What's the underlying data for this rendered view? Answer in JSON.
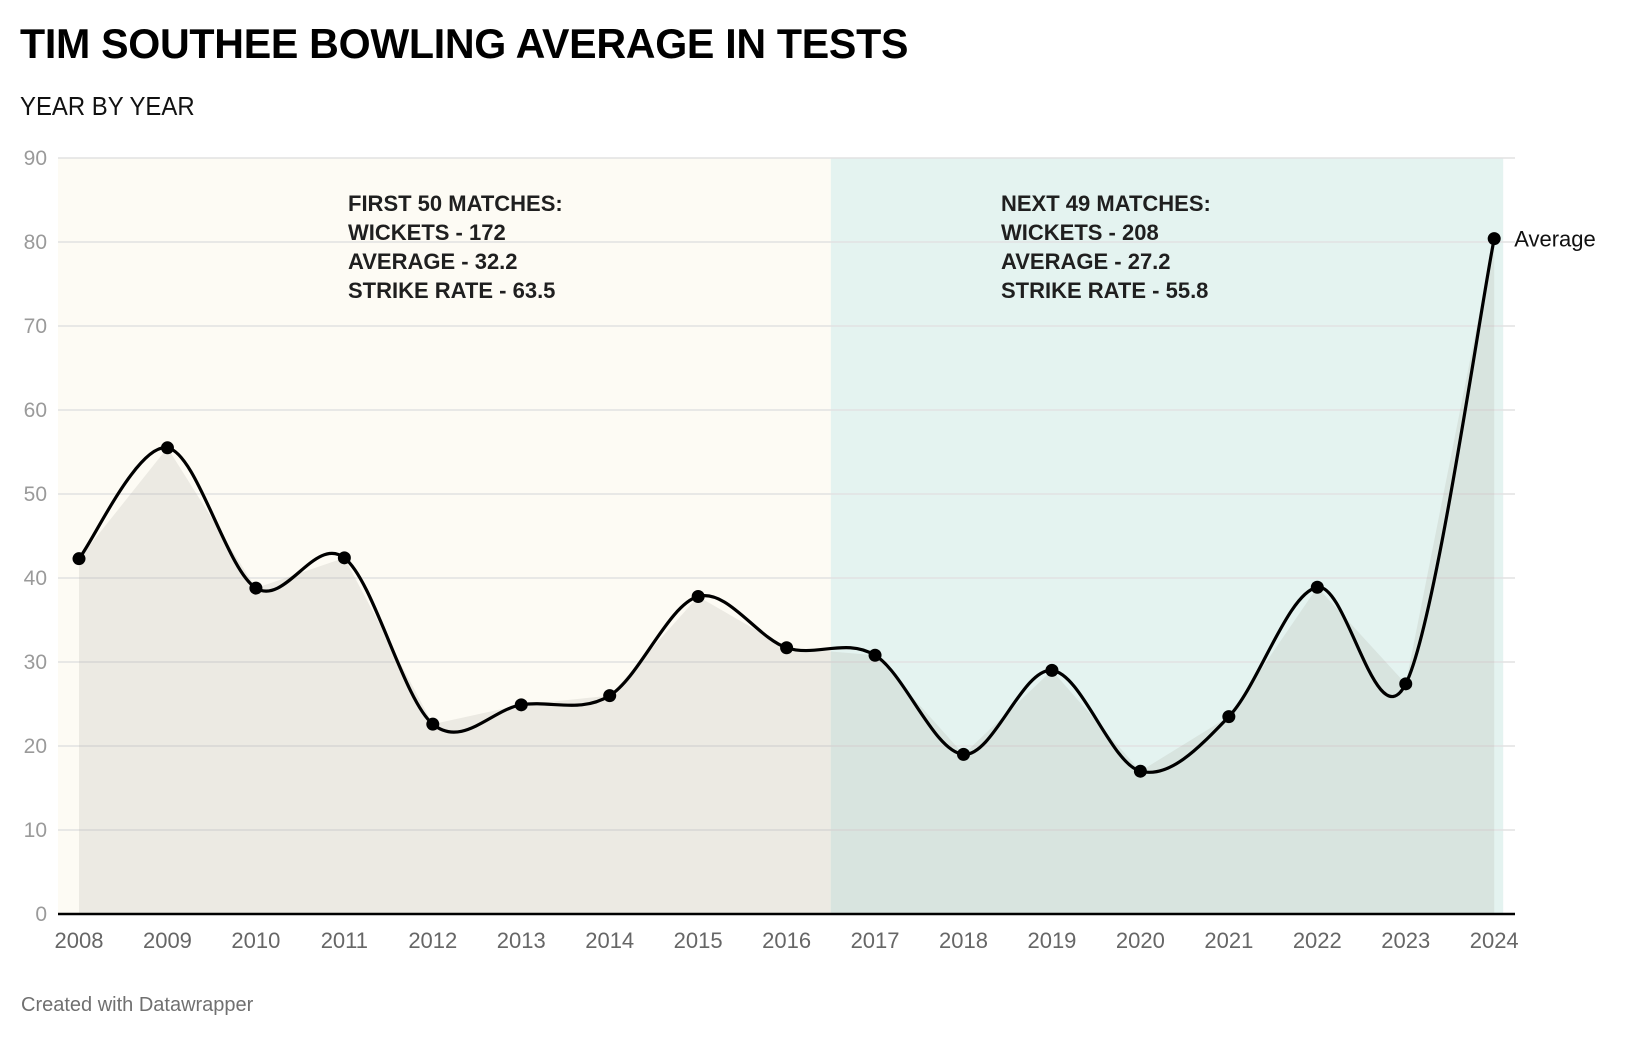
{
  "header": {
    "title": "TIM SOUTHEE BOWLING AVERAGE IN TESTS",
    "subtitle": "YEAR BY YEAR"
  },
  "footer": {
    "credit": "Created with Datawrapper"
  },
  "colors": {
    "line": "#000000",
    "marker": "#000000",
    "area_fill": "rgba(160,160,150,0.18)",
    "band_first": "#fdfbf4",
    "band_next": "#e4f3f0",
    "grid": "#e2e2e2",
    "baseline": "#000000"
  },
  "chart_data": {
    "type": "line",
    "title": "TIM SOUTHEE BOWLING AVERAGE IN TESTS",
    "subtitle": "YEAR BY YEAR",
    "xlabel": "",
    "ylabel": "",
    "x": [
      "2008",
      "2009",
      "2010",
      "2011",
      "2012",
      "2013",
      "2014",
      "2015",
      "2016",
      "2017",
      "2018",
      "2019",
      "2020",
      "2021",
      "2022",
      "2023",
      "2024"
    ],
    "series": [
      {
        "name": "Average",
        "values": [
          42.3,
          55.5,
          38.8,
          42.4,
          22.6,
          24.9,
          26.0,
          37.8,
          31.7,
          30.8,
          19.0,
          29.0,
          17.0,
          23.5,
          38.9,
          27.4,
          80.4
        ],
        "curve": "smooth",
        "markers": true,
        "area": true
      }
    ],
    "ylim": [
      0,
      90
    ],
    "yticks": [
      0,
      10,
      20,
      30,
      40,
      50,
      60,
      70,
      80,
      90
    ],
    "grid": true,
    "legend": "inline-right-of-last-point",
    "ranges": [
      {
        "name": "first-50-matches",
        "from": "2008",
        "to": "between 2016 and 2017",
        "color": "#fdfbf4"
      },
      {
        "name": "next-49-matches",
        "from": "between 2016 and 2017",
        "to": "2024",
        "color": "#e4f3f0"
      }
    ],
    "annotations": [
      {
        "name": "first-50-matches",
        "lines": [
          "FIRST 50 MATCHES:",
          "WICKETS - 172",
          "AVERAGE - 32.2",
          "STRIKE RATE - 63.5"
        ]
      },
      {
        "name": "next-49-matches",
        "lines": [
          "NEXT 49 MATCHES:",
          "WICKETS - 208",
          "AVERAGE - 27.2",
          "STRIKE RATE - 55.8"
        ]
      }
    ]
  }
}
